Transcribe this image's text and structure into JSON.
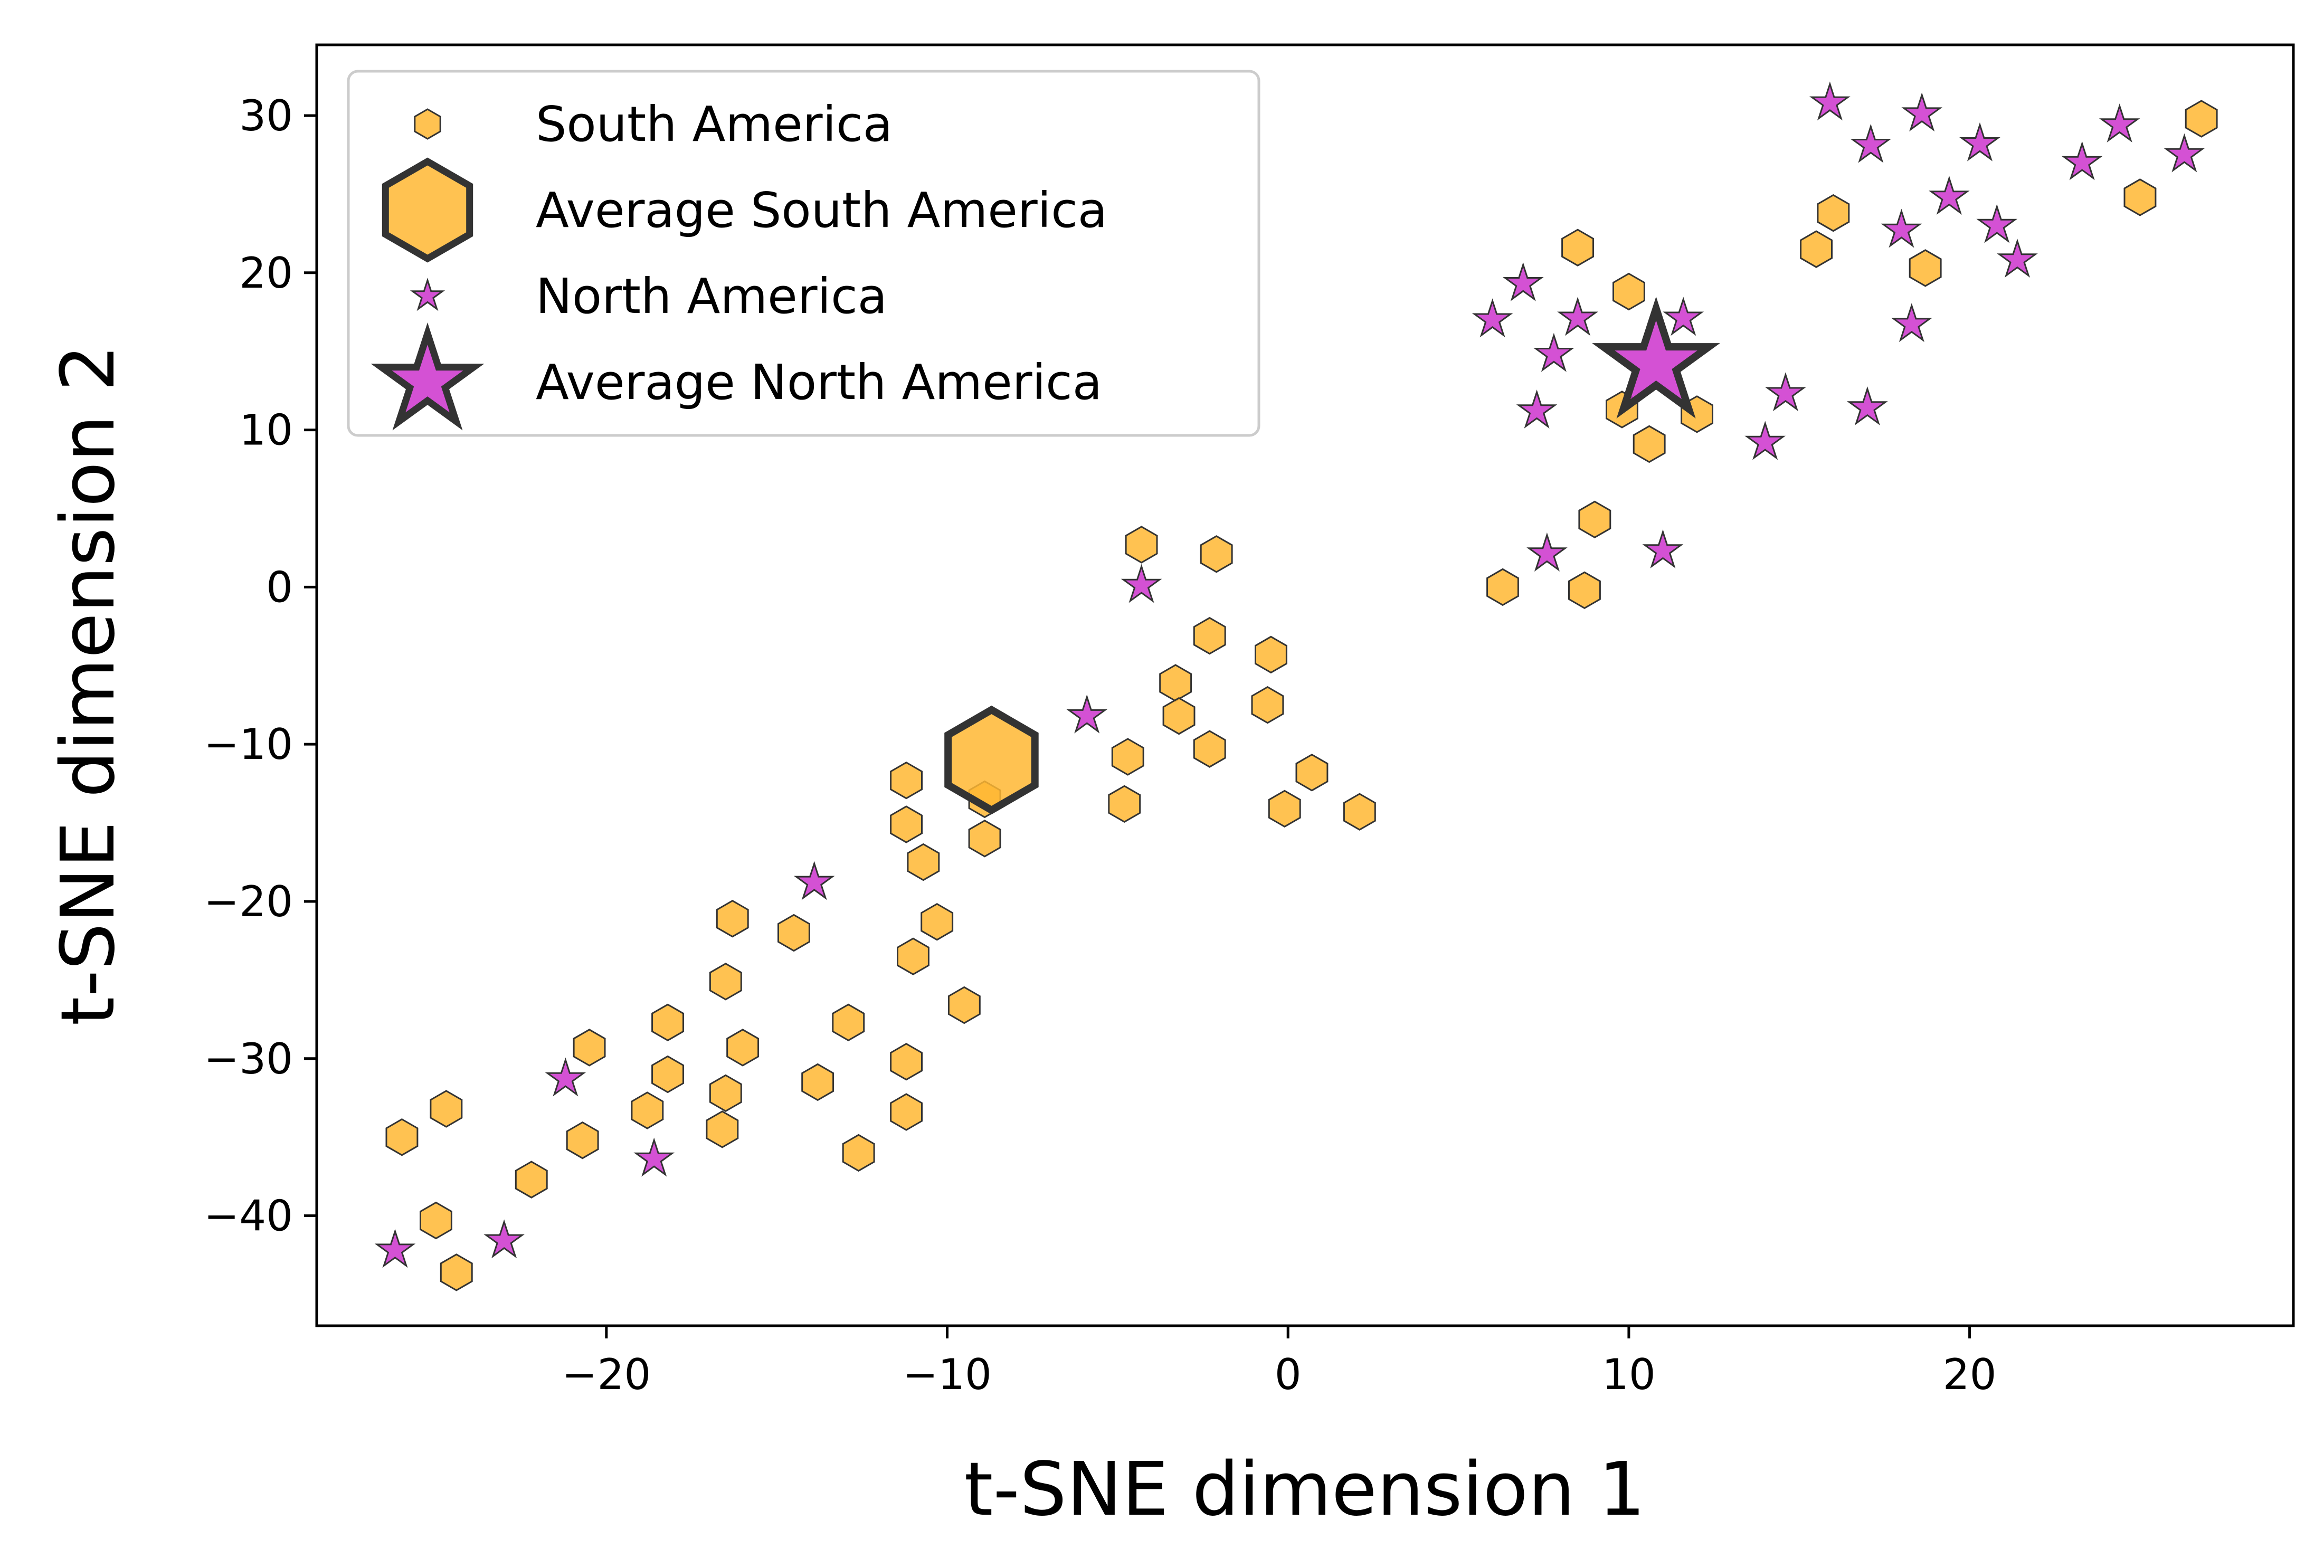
{
  "chart_data": {
    "type": "scatter",
    "title": "",
    "xlabel": "t-SNE dimension 1",
    "ylabel": "t-SNE dimension 2",
    "xlim": [
      -28.5,
      29.5
    ],
    "ylim": [
      -47,
      34.5
    ],
    "xticks": [
      -20,
      -10,
      0,
      10,
      20
    ],
    "yticks": [
      -40,
      -30,
      -20,
      -10,
      0,
      10,
      20,
      30
    ],
    "grid": false,
    "legend_position": "top-left",
    "series": [
      {
        "name": "South America",
        "marker": "hexagon",
        "color": "#FFB733",
        "edge_color": "#333333",
        "points": [
          [
            -26.0,
            -35.0
          ],
          [
            -24.7,
            -33.2
          ],
          [
            -25.0,
            -40.3
          ],
          [
            -24.4,
            -43.6
          ],
          [
            -22.2,
            -37.7
          ],
          [
            -20.7,
            -35.2
          ],
          [
            -20.5,
            -29.3
          ],
          [
            -18.2,
            -27.7
          ],
          [
            -18.2,
            -31.0
          ],
          [
            -18.8,
            -33.3
          ],
          [
            -16.6,
            -34.5
          ],
          [
            -16.5,
            -32.2
          ],
          [
            -16.0,
            -29.3
          ],
          [
            -16.5,
            -25.1
          ],
          [
            -16.3,
            -21.1
          ],
          [
            -14.5,
            -22.0
          ],
          [
            -13.8,
            -31.5
          ],
          [
            -12.9,
            -27.7
          ],
          [
            -12.6,
            -36.0
          ],
          [
            -11.2,
            -33.4
          ],
          [
            -11.2,
            -30.2
          ],
          [
            -11.0,
            -23.5
          ],
          [
            -10.3,
            -21.3
          ],
          [
            -9.5,
            -26.6
          ],
          [
            -10.7,
            -17.5
          ],
          [
            -11.2,
            -15.1
          ],
          [
            -11.2,
            -12.3
          ],
          [
            -8.9,
            -13.5
          ],
          [
            -8.9,
            -16.0
          ],
          [
            -4.8,
            -13.8
          ],
          [
            -4.7,
            -10.8
          ],
          [
            -4.3,
            2.7
          ],
          [
            -3.3,
            -6.1
          ],
          [
            -3.2,
            -8.2
          ],
          [
            -2.3,
            -10.3
          ],
          [
            -2.3,
            -3.1
          ],
          [
            -2.1,
            2.1
          ],
          [
            -0.5,
            -4.3
          ],
          [
            -0.6,
            -7.5
          ],
          [
            -0.1,
            -14.1
          ],
          [
            0.7,
            -11.8
          ],
          [
            2.1,
            -14.3
          ],
          [
            6.3,
            0.0
          ],
          [
            8.7,
            -0.2
          ],
          [
            9.0,
            4.3
          ],
          [
            9.8,
            11.3
          ],
          [
            10.6,
            9.1
          ],
          [
            12.0,
            11.0
          ],
          [
            10.0,
            18.8
          ],
          [
            8.5,
            21.6
          ],
          [
            15.5,
            21.5
          ],
          [
            16.0,
            23.8
          ],
          [
            18.7,
            20.3
          ],
          [
            25.0,
            24.8
          ],
          [
            26.8,
            29.8
          ]
        ]
      },
      {
        "name": "Average South America",
        "marker": "hexagon",
        "color": "#FFB733",
        "edge_color": "#333333",
        "points": [
          [
            -8.7,
            -11.0
          ]
        ]
      },
      {
        "name": "North America",
        "marker": "star",
        "color": "#CC33CC",
        "edge_color": "#333333",
        "points": [
          [
            -26.2,
            -42.2
          ],
          [
            -23.0,
            -41.6
          ],
          [
            -21.2,
            -31.3
          ],
          [
            -18.6,
            -36.4
          ],
          [
            -13.9,
            -18.8
          ],
          [
            -5.9,
            -8.2
          ],
          [
            -4.3,
            0.1
          ],
          [
            6.0,
            17.0
          ],
          [
            6.9,
            19.3
          ],
          [
            7.3,
            11.2
          ],
          [
            7.6,
            2.1
          ],
          [
            7.8,
            14.8
          ],
          [
            8.5,
            17.1
          ],
          [
            11.0,
            2.3
          ],
          [
            11.6,
            17.1
          ],
          [
            14.0,
            9.2
          ],
          [
            14.6,
            12.3
          ],
          [
            15.9,
            30.8
          ],
          [
            17.1,
            28.1
          ],
          [
            17.0,
            11.4
          ],
          [
            18.0,
            22.7
          ],
          [
            18.3,
            16.7
          ],
          [
            18.6,
            30.1
          ],
          [
            19.4,
            24.8
          ],
          [
            20.3,
            28.2
          ],
          [
            20.8,
            23.0
          ],
          [
            21.4,
            20.8
          ],
          [
            23.3,
            27.0
          ],
          [
            24.4,
            29.4
          ],
          [
            26.3,
            27.5
          ]
        ]
      },
      {
        "name": "Average North America",
        "marker": "star",
        "color": "#CC33CC",
        "edge_color": "#333333",
        "points": [
          [
            10.8,
            14.2
          ]
        ]
      }
    ]
  }
}
